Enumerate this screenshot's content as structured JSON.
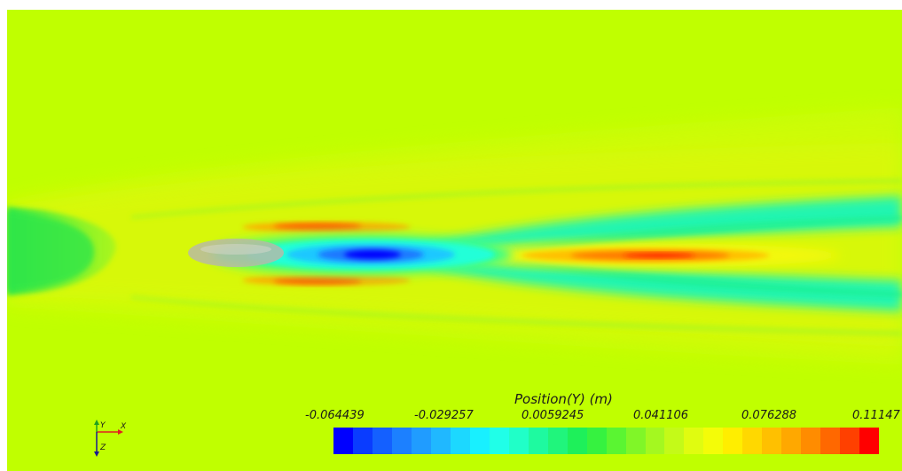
{
  "legend": {
    "title": "Position(Y) (m)",
    "ticks": [
      "-0.064439",
      "-0.029257",
      "0.0059245",
      "0.041106",
      "0.076288",
      "0.11147"
    ],
    "colormap": [
      "#0000ff",
      "#0a3cff",
      "#1460ff",
      "#1c80ff",
      "#209cff",
      "#20b8ff",
      "#1cd8ff",
      "#18f0ff",
      "#20ffe8",
      "#20ffc8",
      "#1efaa0",
      "#20f57c",
      "#1ef05a",
      "#36f240",
      "#5af532",
      "#80f628",
      "#a4f820",
      "#c4fa18",
      "#e0fc10",
      "#f4fc08",
      "#ffee00",
      "#ffd800",
      "#ffc000",
      "#ffa800",
      "#ff8c00",
      "#ff6800",
      "#ff4000",
      "#ff0000"
    ]
  },
  "axes": {
    "y": "Y",
    "x": "X",
    "z": "Z"
  },
  "field": {
    "background": "#c0ff00",
    "min_color": "#0000ff",
    "max_color": "#ff0000"
  }
}
